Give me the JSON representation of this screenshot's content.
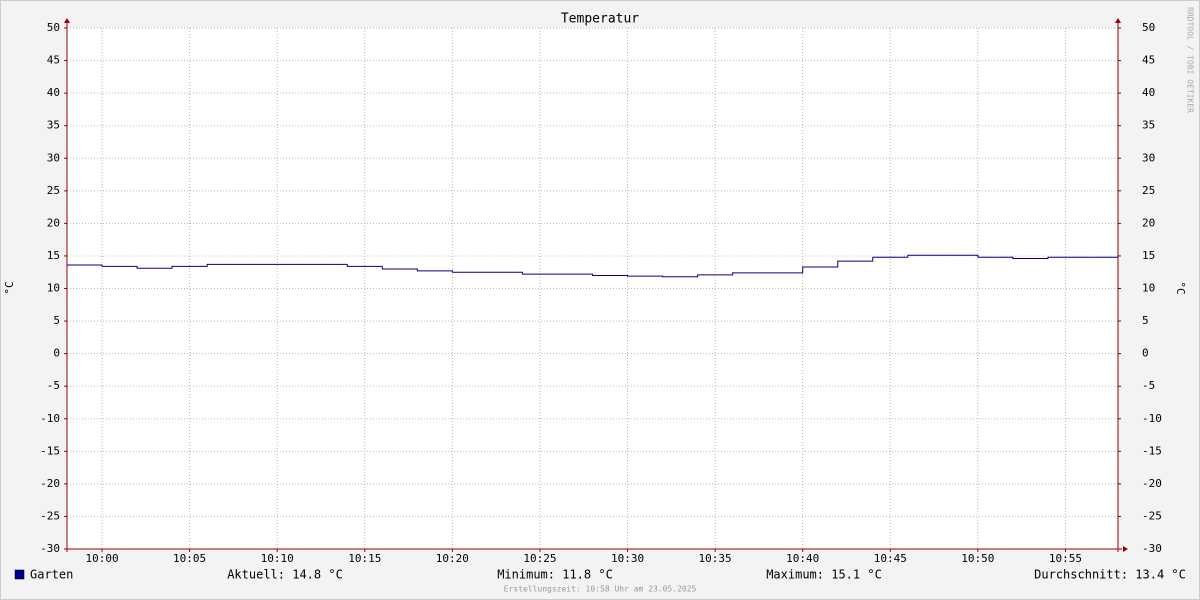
{
  "chart_data": {
    "type": "step",
    "title": "Temperatur",
    "y_label": "°C",
    "x": [
      598,
      600,
      602,
      604,
      606,
      608,
      610,
      612,
      614,
      616,
      618,
      620,
      622,
      624,
      626,
      628,
      630,
      632,
      634,
      636,
      638,
      640,
      642,
      644,
      646,
      648,
      650,
      652,
      654,
      656
    ],
    "series": [
      {
        "name": "Garten",
        "color": "#000088",
        "values": [
          13.6,
          13.4,
          13.1,
          13.4,
          13.7,
          13.7,
          13.7,
          13.7,
          13.4,
          13.0,
          12.7,
          12.5,
          12.5,
          12.2,
          12.2,
          12.0,
          11.9,
          11.8,
          12.1,
          12.4,
          12.4,
          13.3,
          14.2,
          14.8,
          15.1,
          15.1,
          14.8,
          14.6,
          14.8,
          14.8
        ]
      }
    ],
    "xlim": [
      598,
      658
    ],
    "xticks": [
      {
        "value": 600,
        "label": "10:00"
      },
      {
        "value": 605,
        "label": "10:05"
      },
      {
        "value": 610,
        "label": "10:10"
      },
      {
        "value": 615,
        "label": "10:15"
      },
      {
        "value": 620,
        "label": "10:20"
      },
      {
        "value": 625,
        "label": "10:25"
      },
      {
        "value": 630,
        "label": "10:30"
      },
      {
        "value": 635,
        "label": "10:35"
      },
      {
        "value": 640,
        "label": "10:40"
      },
      {
        "value": 645,
        "label": "10:45"
      },
      {
        "value": 650,
        "label": "10:50"
      },
      {
        "value": 655,
        "label": "10:55"
      }
    ],
    "ylim": [
      -30,
      50
    ],
    "yticks": [
      50,
      45,
      40,
      35,
      30,
      25,
      20,
      15,
      10,
      5,
      0,
      -5,
      -10,
      -15,
      -20,
      -25,
      -30
    ],
    "grid": true,
    "stats": [
      "Aktuell: 14.8 °C",
      "Minimum: 11.8 °C",
      "Maximum: 15.1 °C",
      "Durchschnitt: 13.4 °C"
    ],
    "footer": "Erstellungszeit: 10:58 Uhr am 23.05.2025",
    "watermark": "RRDTOOL / TOBI OETIKER"
  }
}
